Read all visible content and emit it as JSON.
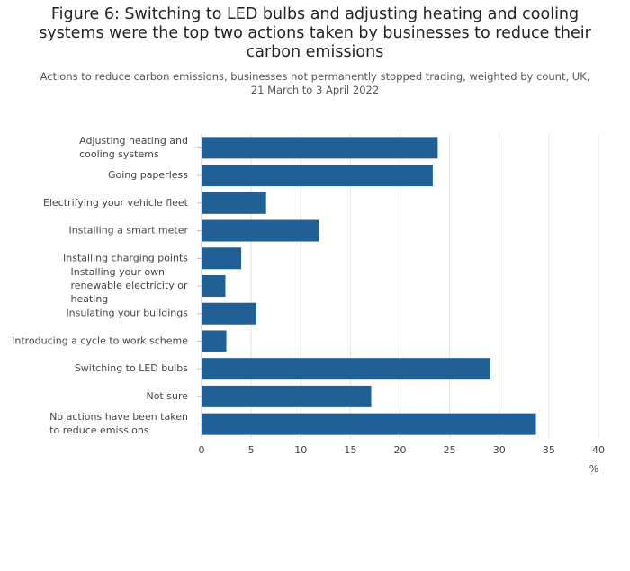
{
  "chart_data": {
    "type": "bar",
    "orientation": "horizontal",
    "title": "Figure 6: Switching to LED bulbs and adjusting heating and cooling systems were the top two actions taken by businesses to reduce their carbon emissions",
    "subtitle": "Actions to reduce carbon emissions, businesses not permanently stopped trading, weighted by count, UK, 21 March to 3 April 2022",
    "x_label": "%",
    "categories": [
      "Adjusting heating and cooling systems",
      "Going paperless",
      "Electrifying your vehicle fleet",
      "Installing a smart meter",
      "Installing charging points",
      "Installing your own renewable electricity or heating",
      "Insulating your buildings",
      "Introducing a cycle to work scheme",
      "Switching to LED bulbs",
      "Not sure",
      "No actions have been taken to reduce emissions"
    ],
    "values": [
      23.8,
      23.3,
      6.5,
      11.8,
      4.0,
      2.4,
      5.5,
      2.5,
      29.1,
      17.1,
      33.7
    ],
    "color": "#206095",
    "xlim": [
      0,
      40
    ],
    "xticks": [
      0,
      5,
      10,
      15,
      20,
      25,
      30,
      35,
      40
    ],
    "grid": true
  }
}
